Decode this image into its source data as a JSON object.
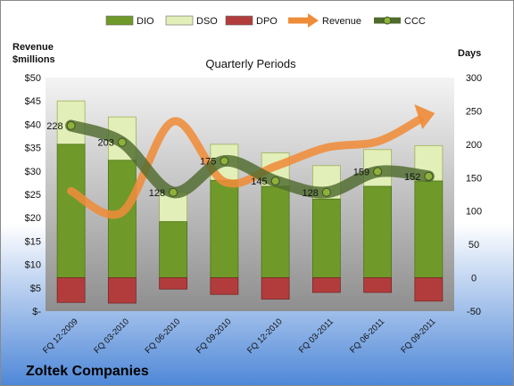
{
  "company": "Zoltek Companies",
  "chart_data": {
    "type": "bar",
    "subtitle": "Quarterly Periods",
    "left_axis": {
      "label_line1": "Revenue",
      "label_line2": "$millions",
      "min": 0,
      "max": 50,
      "step": 5,
      "tick_labels": [
        "$-",
        "$5",
        "$10",
        "$15",
        "$20",
        "$25",
        "$30",
        "$35",
        "$40",
        "$45",
        "$50"
      ]
    },
    "right_axis": {
      "label": "Days",
      "min": -50,
      "max": 300,
      "step": 50,
      "tick_labels": [
        "-50",
        "0",
        "50",
        "100",
        "150",
        "200",
        "250",
        "300"
      ]
    },
    "categories": [
      "FQ 12-2009",
      "FQ 03-2010",
      "FQ 06-2010",
      "FQ 09-2010",
      "FQ 12-2010",
      "FQ 03-2011",
      "FQ 06-2011",
      "FQ 09-2011"
    ],
    "series": [
      {
        "name": "DIO",
        "kind": "stacked-bar",
        "axis": "right",
        "color": "#6f9a2a",
        "values": [
          200,
          176,
          84,
          146,
          137,
          118,
          137,
          145
        ]
      },
      {
        "name": "DSO",
        "kind": "stacked-bar",
        "axis": "right",
        "color": "#e2efb8",
        "values": [
          65,
          65,
          44,
          54,
          50,
          50,
          55,
          53
        ]
      },
      {
        "name": "DPO",
        "kind": "stacked-bar-negative",
        "axis": "right",
        "color": "#b23c3c",
        "values": [
          -37,
          -38,
          -17,
          -25,
          -32,
          -22,
          -22,
          -35
        ]
      },
      {
        "name": "Revenue",
        "kind": "line",
        "axis": "left",
        "color": "#ef8c3a",
        "values": [
          25.7,
          21.2,
          40.6,
          27.7,
          31.0,
          35.0,
          36.3,
          41.8
        ]
      },
      {
        "name": "CCC",
        "kind": "line",
        "axis": "right",
        "color": "#4f6b2e",
        "values": [
          228,
          203,
          128,
          175,
          145,
          128,
          159,
          152
        ],
        "data_labels": [
          "228",
          "203",
          "128",
          "175",
          "145",
          "128",
          "159",
          "152"
        ]
      }
    ],
    "legend": {
      "position": "top",
      "items": [
        {
          "label": "DIO",
          "symbol": "bar",
          "color": "#6f9a2a"
        },
        {
          "label": "DSO",
          "symbol": "bar",
          "color": "#e2efb8"
        },
        {
          "label": "DPO",
          "symbol": "bar",
          "color": "#b23c3c"
        },
        {
          "label": "Revenue",
          "symbol": "arrow",
          "color": "#ef8c3a"
        },
        {
          "label": "CCC",
          "symbol": "line-marker",
          "color": "#4f6b2e"
        }
      ]
    },
    "grid": false,
    "colors": {
      "plot_bg_top": "#f4f4f4",
      "plot_bg_bottom": "#8e8e8e",
      "page_bg_top": "#ffffff",
      "page_bg_bottom": "#4f88d8"
    }
  }
}
